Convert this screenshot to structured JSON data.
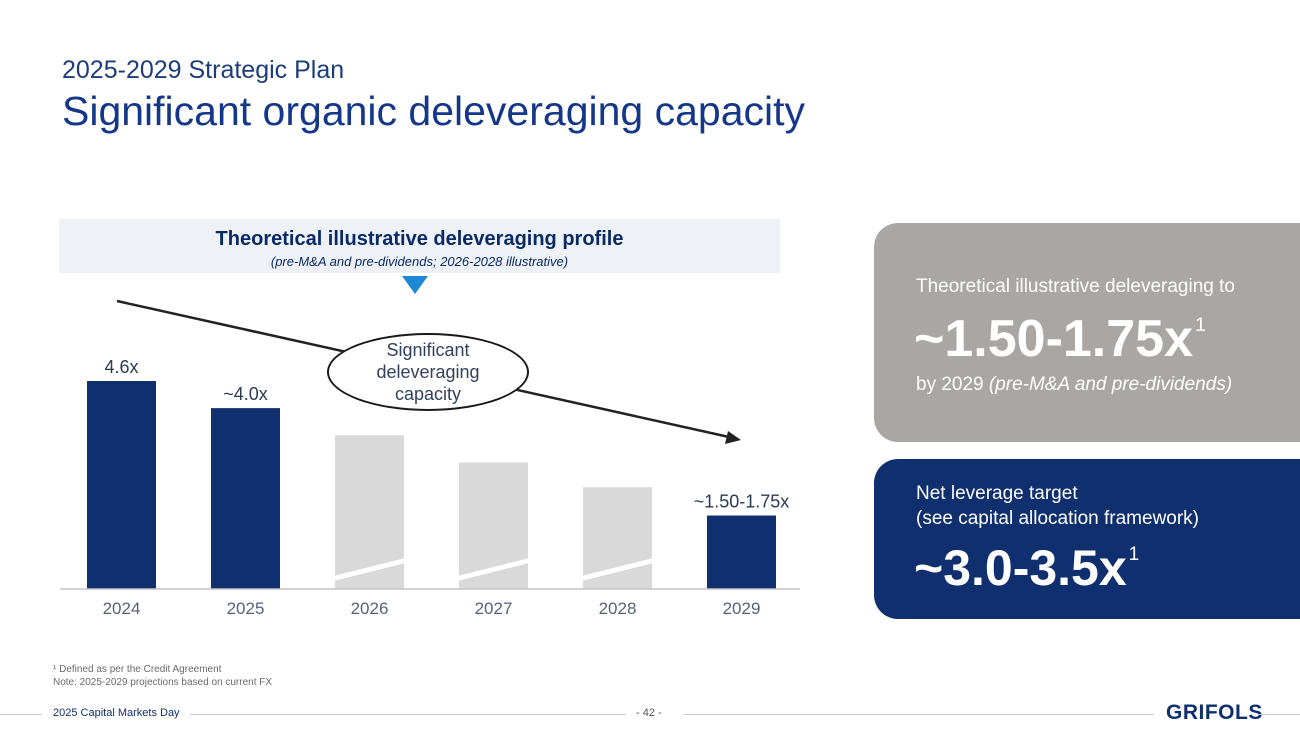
{
  "header": {
    "subtitle": "2025-2029 Strategic Plan",
    "title": "Significant organic deleveraging capacity"
  },
  "chart_header": {
    "title": "Theoretical illustrative deleveraging profile",
    "subtitle": "(pre-M&A and pre-dividends; 2026-2028 illustrative)"
  },
  "callout": {
    "lines": [
      "Significant",
      "deleveraging",
      "capacity"
    ]
  },
  "chart_data": {
    "type": "bar",
    "title": "Theoretical illustrative deleveraging profile",
    "categories": [
      "2024",
      "2025",
      "2026",
      "2027",
      "2028",
      "2029"
    ],
    "values": [
      4.6,
      4.0,
      3.4,
      2.8,
      2.25,
      1.625
    ],
    "data_labels": [
      "4.6x",
      "~4.0x",
      "",
      "",
      "",
      "~1.50-1.75x"
    ],
    "illustrative": [
      false,
      false,
      true,
      true,
      true,
      false
    ],
    "ylim": [
      0,
      4.6
    ],
    "grid": false,
    "colors": {
      "actual": "#0f2f6e",
      "illustrative": "#d9d9d9"
    }
  },
  "panels": {
    "gray": {
      "heading": "Theoretical illustrative deleveraging to",
      "value": "~1.50-1.75x",
      "footnote_mark": "1",
      "foot": "by 2029",
      "foot_italic": "(pre-M&A and pre-dividends)"
    },
    "blue": {
      "heading_line1": "Net leverage target",
      "heading_line2": "(see capital allocation framework)",
      "value": "~3.0-3.5x",
      "footnote_mark": "1"
    }
  },
  "footnotes": {
    "line1": "¹ Defined as per the Credit Agreement",
    "line2": "Note: 2025-2029 projections based on current FX"
  },
  "footer": {
    "event": "2025 Capital Markets Day",
    "page": "- 42 -",
    "logo": "GRIFOLS"
  }
}
